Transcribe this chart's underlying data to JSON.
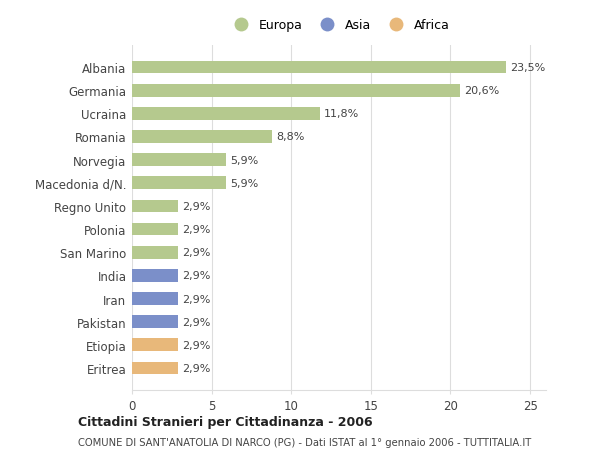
{
  "countries": [
    "Albania",
    "Germania",
    "Ucraina",
    "Romania",
    "Norvegia",
    "Macedonia d/N.",
    "Regno Unito",
    "Polonia",
    "San Marino",
    "India",
    "Iran",
    "Pakistan",
    "Etiopia",
    "Eritrea"
  ],
  "values": [
    23.5,
    20.6,
    11.8,
    8.8,
    5.9,
    5.9,
    2.9,
    2.9,
    2.9,
    2.9,
    2.9,
    2.9,
    2.9,
    2.9
  ],
  "continents": [
    "Europa",
    "Europa",
    "Europa",
    "Europa",
    "Europa",
    "Europa",
    "Europa",
    "Europa",
    "Europa",
    "Asia",
    "Asia",
    "Asia",
    "Africa",
    "Africa"
  ],
  "colors": {
    "Europa": "#b5c98e",
    "Asia": "#7b8fc9",
    "Africa": "#e8b87a"
  },
  "labels": [
    "23,5%",
    "20,6%",
    "11,8%",
    "8,8%",
    "5,9%",
    "5,9%",
    "2,9%",
    "2,9%",
    "2,9%",
    "2,9%",
    "2,9%",
    "2,9%",
    "2,9%",
    "2,9%"
  ],
  "xlim": [
    0,
    26
  ],
  "xticks": [
    0,
    5,
    10,
    15,
    20,
    25
  ],
  "title": "Cittadini Stranieri per Cittadinanza - 2006",
  "subtitle": "COMUNE DI SANT'ANATOLIA DI NARCO (PG) - Dati ISTAT al 1° gennaio 2006 - TUTTITALIA.IT",
  "legend_labels": [
    "Europa",
    "Asia",
    "Africa"
  ],
  "legend_colors": [
    "#b5c98e",
    "#7b8fc9",
    "#e8b87a"
  ],
  "background_color": "#ffffff",
  "bar_height": 0.55,
  "grid_color": "#dddddd",
  "text_color": "#444444"
}
